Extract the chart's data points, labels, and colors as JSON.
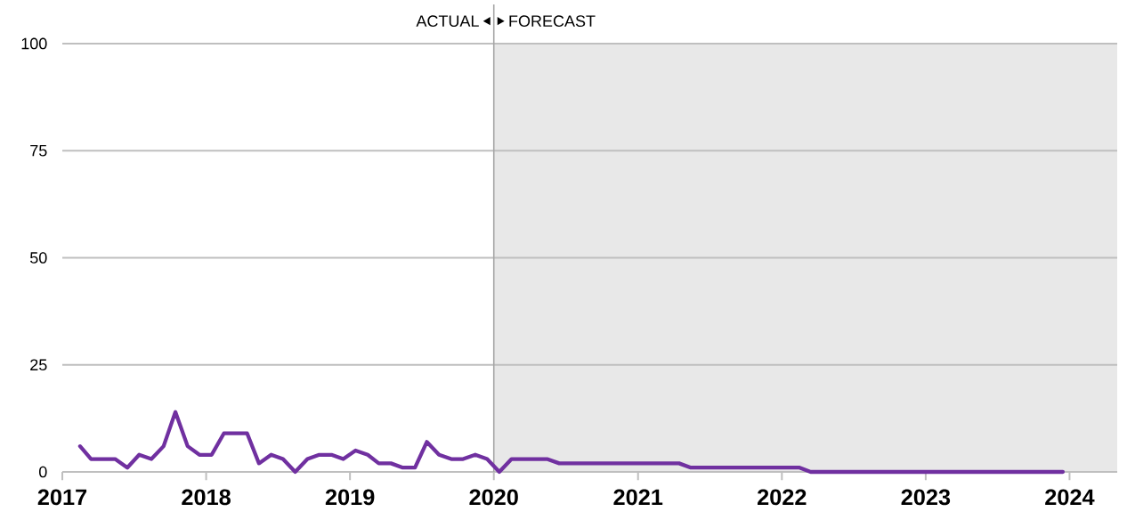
{
  "chart_data": {
    "type": "line",
    "annotations": [
      "ACTUAL",
      "FORECAST"
    ],
    "x": [
      "2017-02-15",
      "2017-03-15",
      "2017-04-15",
      "2017-05-15",
      "2017-06-15",
      "2017-07-15",
      "2017-08-15",
      "2017-09-15",
      "2017-10-15",
      "2017-11-15",
      "2017-12-15",
      "2018-01-15",
      "2018-02-15",
      "2018-03-15",
      "2018-04-15",
      "2018-05-15",
      "2018-06-15",
      "2018-07-15",
      "2018-08-15",
      "2018-09-15",
      "2018-10-15",
      "2018-11-15",
      "2018-12-15",
      "2019-01-15",
      "2019-02-15",
      "2019-03-15",
      "2019-04-15",
      "2019-05-15",
      "2019-06-15",
      "2019-07-15",
      "2019-08-15",
      "2019-09-15",
      "2019-10-15",
      "2019-11-15",
      "2019-12-15",
      "2020-01-15",
      "2020-02-15",
      "2020-03-15",
      "2020-04-15",
      "2020-05-15",
      "2020-06-15",
      "2020-07-15",
      "2020-08-15",
      "2020-09-15",
      "2020-10-15",
      "2020-11-15",
      "2020-12-15",
      "2021-01-15",
      "2021-02-15",
      "2021-03-15",
      "2021-04-15",
      "2021-05-15",
      "2021-06-15",
      "2021-07-15",
      "2021-08-15",
      "2021-09-15",
      "2021-10-15",
      "2021-11-15",
      "2021-12-15",
      "2022-01-15",
      "2022-02-15",
      "2022-03-15",
      "2022-04-15",
      "2022-05-15",
      "2022-06-15",
      "2022-07-15",
      "2022-08-15",
      "2022-09-15",
      "2022-10-15",
      "2022-11-15",
      "2022-12-15",
      "2023-01-15",
      "2023-02-15",
      "2023-03-15",
      "2023-04-15",
      "2023-05-15",
      "2023-06-15",
      "2023-07-15",
      "2023-08-15",
      "2023-09-15",
      "2023-10-15",
      "2023-11-15",
      "2023-12-15"
    ],
    "series": [
      {
        "color": "#7030a0",
        "values": [
          6,
          3,
          3,
          3,
          1,
          4,
          3,
          6,
          14,
          6,
          4,
          4,
          9,
          9,
          9,
          2,
          4,
          3,
          0,
          3,
          4,
          4,
          3,
          5,
          4,
          2,
          2,
          1,
          1,
          7,
          4,
          3,
          3,
          4,
          3,
          0,
          3,
          3,
          3,
          3,
          2,
          2,
          2,
          2,
          2,
          2,
          2,
          2,
          2,
          2,
          2,
          1,
          1,
          1,
          1,
          1,
          1,
          1,
          1,
          1,
          1,
          0,
          0,
          0,
          0,
          0,
          0,
          0,
          0,
          0,
          0,
          0,
          0,
          0,
          0,
          0,
          0,
          0,
          0,
          0,
          0,
          0,
          0
        ]
      }
    ],
    "xlim": [
      "2017",
      "2024-05"
    ],
    "ylim": [
      0,
      100
    ],
    "xticks": [
      "2017",
      "2018",
      "2019",
      "2020",
      "2021",
      "2022",
      "2023",
      "2024"
    ],
    "yticks": [
      0,
      25,
      50,
      75,
      100
    ],
    "grid": "y",
    "legend": false,
    "marker": "none",
    "line_style": "solid",
    "ref_lines": [
      {
        "axis": "x",
        "value": "2020",
        "color": "#a6a6a6"
      }
    ],
    "bands": [
      {
        "axis": "x",
        "from": "2020",
        "to": "2024-05",
        "color": "#e8e8e8"
      }
    ]
  }
}
